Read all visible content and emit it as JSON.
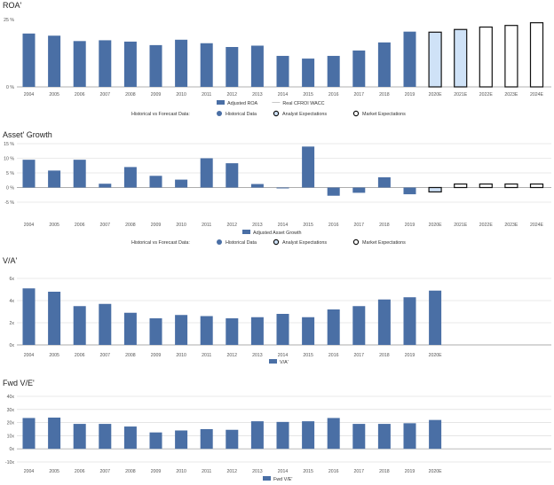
{
  "colors": {
    "bar": "#4a6fa5",
    "analyst_fill": "#cfe2f7",
    "outline": "#111111",
    "grid": "#d6d6d6",
    "axis": "#999999",
    "text": "#333333"
  },
  "chart_data": [
    {
      "type": "bar",
      "title": "ROA'",
      "categories": [
        "2004",
        "2005",
        "2006",
        "2007",
        "2008",
        "2009",
        "2010",
        "2011",
        "2012",
        "2013",
        "2014",
        "2015",
        "2016",
        "2017",
        "2018",
        "2019",
        "2020E",
        "2021E",
        "2022E",
        "2023E",
        "2024E"
      ],
      "series": [
        {
          "name": "Adjusted ROA",
          "values": [
            19.8,
            19.0,
            17.0,
            17.3,
            16.8,
            15.5,
            17.5,
            16.2,
            14.8,
            15.3,
            11.5,
            10.5,
            11.5,
            13.5,
            16.5,
            20.5,
            20.3,
            21.3,
            22.2,
            22.8,
            23.8
          ],
          "styles": [
            "historical",
            "historical",
            "historical",
            "historical",
            "historical",
            "historical",
            "historical",
            "historical",
            "historical",
            "historical",
            "historical",
            "historical",
            "historical",
            "historical",
            "historical",
            "historical",
            "analyst",
            "analyst",
            "market",
            "market",
            "market"
          ]
        }
      ],
      "ylim": [
        0,
        25
      ],
      "yticks": [
        {
          "v": 0,
          "label": "0 %"
        },
        {
          "v": 25,
          "label": "25 %"
        }
      ],
      "legend_top": [
        "Adjusted ROA",
        "Real CFROI WACC"
      ],
      "legend_bottom": {
        "label": "Historical vs Forecast Data:",
        "items": [
          "Historical Data",
          "Analyst Expectations",
          "Market Expectations"
        ]
      },
      "grid": false
    },
    {
      "type": "bar",
      "title": "Asset' Growth",
      "categories": [
        "2004",
        "2005",
        "2006",
        "2007",
        "2008",
        "2009",
        "2010",
        "2011",
        "2012",
        "2013",
        "2014",
        "2015",
        "2016",
        "2017",
        "2018",
        "2019",
        "2020E",
        "2021E",
        "2022E",
        "2023E",
        "2024E"
      ],
      "series": [
        {
          "name": "Adjusted Asset Growth",
          "values": [
            9.5,
            5.8,
            9.5,
            1.3,
            7.0,
            4.0,
            2.7,
            10.0,
            8.3,
            1.2,
            -0.3,
            14.0,
            -2.8,
            -1.8,
            3.5,
            -2.3,
            -1.5,
            1.2,
            1.2,
            1.2,
            1.2
          ],
          "styles": [
            "historical",
            "historical",
            "historical",
            "historical",
            "historical",
            "historical",
            "historical",
            "historical",
            "historical",
            "historical",
            "historical",
            "historical",
            "historical",
            "historical",
            "historical",
            "historical",
            "analyst",
            "market",
            "market",
            "market",
            "market"
          ]
        }
      ],
      "ylim": [
        -5,
        15
      ],
      "yticks": [
        {
          "v": -5,
          "label": "-5 %"
        },
        {
          "v": 0,
          "label": "0 %"
        },
        {
          "v": 5,
          "label": "5 %"
        },
        {
          "v": 10,
          "label": "10 %"
        },
        {
          "v": 15,
          "label": "15 %"
        }
      ],
      "legend_top": [
        "Adjusted Asset Growth"
      ],
      "legend_bottom": {
        "label": "Historical vs Forecast Data:",
        "items": [
          "Historical Data",
          "Analyst Expectations",
          "Market Expectations"
        ]
      },
      "grid": true
    },
    {
      "type": "bar",
      "title": "V/A'",
      "categories": [
        "2004",
        "2005",
        "2006",
        "2007",
        "2008",
        "2009",
        "2010",
        "2011",
        "2012",
        "2013",
        "2014",
        "2015",
        "2016",
        "2017",
        "2018",
        "2019",
        "2020E"
      ],
      "series": [
        {
          "name": "V/A'",
          "values": [
            5.1,
            4.8,
            3.5,
            3.7,
            2.9,
            2.4,
            2.7,
            2.6,
            2.4,
            2.5,
            2.8,
            2.5,
            3.2,
            3.5,
            4.1,
            4.3,
            4.9
          ]
        }
      ],
      "ylim": [
        0,
        6
      ],
      "yticks": [
        {
          "v": 0,
          "label": "0x"
        },
        {
          "v": 2,
          "label": "2x"
        },
        {
          "v": 4,
          "label": "4x"
        },
        {
          "v": 6,
          "label": "6x"
        }
      ],
      "legend_top": [
        "V/A'"
      ],
      "grid": true
    },
    {
      "type": "bar",
      "title": "Fwd V/E'",
      "categories": [
        "2004",
        "2005",
        "2006",
        "2007",
        "2008",
        "2009",
        "2010",
        "2011",
        "2012",
        "2013",
        "2014",
        "2015",
        "2016",
        "2017",
        "2018",
        "2019",
        "2020E"
      ],
      "series": [
        {
          "name": "Fwd V/E'",
          "values": [
            23.5,
            23.8,
            19.0,
            19.0,
            17.0,
            12.5,
            14.0,
            15.0,
            14.5,
            21.0,
            20.5,
            21.0,
            23.5,
            19.0,
            19.0,
            19.5,
            22.0
          ]
        }
      ],
      "ylim": [
        -10,
        40
      ],
      "yticks": [
        {
          "v": -10,
          "label": "-10x"
        },
        {
          "v": 0,
          "label": "0x"
        },
        {
          "v": 10,
          "label": "10x"
        },
        {
          "v": 20,
          "label": "20x"
        },
        {
          "v": 30,
          "label": "30x"
        },
        {
          "v": 40,
          "label": "40x"
        }
      ],
      "legend_top": [
        "Fwd V/E'"
      ],
      "grid": true
    }
  ]
}
